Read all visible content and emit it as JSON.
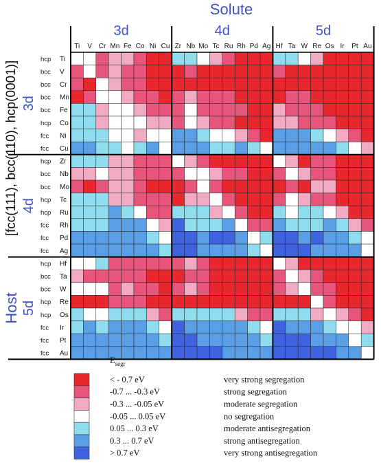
{
  "chart_data": {
    "type": "heatmap",
    "title": "Solute",
    "host_axis_label": "Host",
    "host_structure_label": "[fcc(111), bcc(110), hcp(0001)]",
    "solute_groups": [
      "3d",
      "4d",
      "5d"
    ],
    "host_groups": [
      "3d",
      "4d",
      "5d"
    ],
    "solutes": {
      "3d": [
        "Ti",
        "V",
        "Cr",
        "Mn",
        "Fe",
        "Co",
        "Ni",
        "Cu"
      ],
      "4d": [
        "Zr",
        "Nb",
        "Mo",
        "Tc",
        "Ru",
        "Rh",
        "Pd",
        "Ag"
      ],
      "5d": [
        "Hf",
        "Ta",
        "W",
        "Re",
        "Os",
        "Ir",
        "Pt",
        "Au"
      ]
    },
    "hosts": [
      {
        "structure": "hcp",
        "element": "Ti"
      },
      {
        "structure": "bcc",
        "element": "V"
      },
      {
        "structure": "bcc",
        "element": "Cr"
      },
      {
        "structure": "bcc",
        "element": "Mn"
      },
      {
        "structure": "bcc",
        "element": "Fe"
      },
      {
        "structure": "hcp",
        "element": "Co"
      },
      {
        "structure": "fcc",
        "element": "Ni"
      },
      {
        "structure": "fcc",
        "element": "Cu"
      },
      {
        "structure": "hcp",
        "element": "Zr"
      },
      {
        "structure": "bcc",
        "element": "Nb"
      },
      {
        "structure": "bcc",
        "element": "Mo"
      },
      {
        "structure": "hcp",
        "element": "Tc"
      },
      {
        "structure": "hcp",
        "element": "Ru"
      },
      {
        "structure": "fcc",
        "element": "Rh"
      },
      {
        "structure": "fcc",
        "element": "Pd"
      },
      {
        "structure": "fcc",
        "element": "Ag"
      },
      {
        "structure": "hcp",
        "element": "Hf"
      },
      {
        "structure": "bcc",
        "element": "Ta"
      },
      {
        "structure": "bcc",
        "element": "W"
      },
      {
        "structure": "hcp",
        "element": "Re"
      },
      {
        "structure": "hcp",
        "element": "Os"
      },
      {
        "structure": "fcc",
        "element": "Ir"
      },
      {
        "structure": "fcc",
        "element": "Pt"
      },
      {
        "structure": "fcc",
        "element": "Au"
      }
    ],
    "legend_title": "E",
    "legend_title_sub": "segr",
    "legend": [
      {
        "range": "< - 0.7 eV",
        "label": "very strong segregation",
        "color": "#e8272e"
      },
      {
        "range": "-0.7 ... -0.3 eV",
        "label": "strong segregation",
        "color": "#e8557a"
      },
      {
        "range": "-0.3 ... -0.05 eV",
        "label": "moderate segregation",
        "color": "#f1aac4"
      },
      {
        "range": "-0.05 ... 0.05 eV",
        "label": "no segregation",
        "color": "#ffffff"
      },
      {
        "range": "0.05   ...  0.3 eV",
        "label": "moderate antisegregation",
        "color": "#8fdcef"
      },
      {
        "range": "0.3     ...  0.7 eV",
        "label": "strong antisegregation",
        "color": "#5a9fe6"
      },
      {
        "range": ">  0.7 eV",
        "label": "very strong antisegregation",
        "color": "#3e62e0"
      }
    ],
    "colors": [
      "#e8272e",
      "#e8557a",
      "#f1aac4",
      "#ffffff",
      "#8fdcef",
      "#5a9fe6",
      "#3e62e0"
    ],
    "class_note": "values are legend class indices 0..6 (0 = very strong segregation, 6 = very strong antisegregation); rows = hosts, columns = solutes Ti..Au; null = diagonal (host = solute)",
    "values": [
      [
        null,
        3,
        1,
        2,
        2,
        1,
        0,
        0,
        4,
        4,
        3,
        2,
        1,
        0,
        0,
        0,
        4,
        4,
        3,
        2,
        0,
        0,
        0,
        0
      ],
      [
        1,
        null,
        1,
        2,
        1,
        1,
        0,
        0,
        0,
        1,
        0,
        0,
        0,
        0,
        0,
        0,
        1,
        0,
        0,
        0,
        0,
        0,
        0,
        0
      ],
      [
        1,
        0,
        null,
        2,
        1,
        1,
        0,
        0,
        0,
        0,
        0,
        0,
        0,
        0,
        0,
        0,
        0,
        0,
        0,
        0,
        0,
        0,
        0,
        0
      ],
      [
        0,
        1,
        3,
        null,
        2,
        1,
        1,
        0,
        1,
        2,
        1,
        1,
        1,
        0,
        0,
        0,
        0,
        1,
        1,
        0,
        0,
        0,
        0,
        0
      ],
      [
        4,
        4,
        2,
        3,
        null,
        2,
        1,
        1,
        1,
        3,
        1,
        1,
        1,
        1,
        0,
        0,
        2,
        1,
        1,
        1,
        0,
        0,
        0,
        0
      ],
      [
        4,
        4,
        2,
        3,
        3,
        null,
        2,
        2,
        1,
        3,
        2,
        1,
        1,
        0,
        0,
        0,
        2,
        2,
        1,
        1,
        1,
        0,
        0,
        0
      ],
      [
        4,
        4,
        4,
        3,
        3,
        2,
        null,
        3,
        5,
        5,
        4,
        3,
        3,
        2,
        1,
        0,
        5,
        5,
        5,
        4,
        3,
        2,
        1,
        0
      ],
      [
        5,
        5,
        4,
        4,
        3,
        4,
        5,
        null,
        5,
        5,
        5,
        4,
        4,
        5,
        4,
        3,
        5,
        5,
        5,
        5,
        5,
        4,
        3,
        2
      ],
      [
        4,
        4,
        4,
        2,
        2,
        1,
        1,
        1,
        null,
        2,
        1,
        0,
        0,
        0,
        0,
        0,
        3,
        2,
        0,
        1,
        1,
        0,
        0,
        0
      ],
      [
        2,
        2,
        3,
        2,
        2,
        1,
        1,
        1,
        1,
        null,
        3,
        2,
        1,
        1,
        0,
        0,
        1,
        3,
        2,
        1,
        1,
        0,
        0,
        0
      ],
      [
        1,
        0,
        1,
        2,
        2,
        1,
        0,
        0,
        0,
        1,
        null,
        1,
        0,
        0,
        0,
        0,
        0,
        1,
        0,
        2,
        2,
        0,
        0,
        0
      ],
      [
        4,
        4,
        4,
        2,
        2,
        1,
        1,
        1,
        0,
        2,
        2,
        null,
        1,
        0,
        0,
        0,
        1,
        3,
        2,
        1,
        1,
        0,
        0,
        0
      ],
      [
        4,
        4,
        4,
        5,
        4,
        3,
        1,
        1,
        4,
        4,
        4,
        2,
        null,
        1,
        0,
        0,
        4,
        3,
        4,
        4,
        3,
        2,
        0,
        0
      ],
      [
        4,
        4,
        4,
        5,
        5,
        5,
        3,
        2,
        6,
        4,
        4,
        4,
        5,
        null,
        1,
        1,
        5,
        4,
        4,
        4,
        5,
        4,
        2,
        1
      ],
      [
        5,
        5,
        5,
        5,
        5,
        5,
        4,
        3,
        6,
        6,
        5,
        6,
        6,
        5,
        null,
        4,
        6,
        6,
        5,
        6,
        5,
        5,
        4,
        3
      ],
      [
        5,
        5,
        5,
        5,
        5,
        5,
        5,
        4,
        6,
        6,
        5,
        5,
        5,
        5,
        4,
        null,
        6,
        6,
        6,
        5,
        5,
        5,
        5,
        3
      ],
      [
        3,
        3,
        4,
        1,
        1,
        1,
        1,
        1,
        1,
        2,
        1,
        0,
        0,
        0,
        0,
        0,
        null,
        2,
        0,
        0,
        0,
        0,
        0,
        0
      ],
      [
        2,
        1,
        1,
        1,
        1,
        1,
        0,
        0,
        0,
        1,
        1,
        0,
        0,
        0,
        0,
        0,
        1,
        null,
        2,
        1,
        0,
        0,
        0,
        0
      ],
      [
        3,
        3,
        3,
        1,
        2,
        1,
        1,
        0,
        1,
        2,
        1,
        0,
        0,
        0,
        0,
        0,
        1,
        2,
        null,
        1,
        1,
        0,
        0,
        0
      ],
      [
        0,
        0,
        0,
        1,
        1,
        1,
        0,
        0,
        0,
        0,
        0,
        0,
        0,
        0,
        0,
        0,
        0,
        0,
        0,
        null,
        1,
        0,
        0,
        0
      ],
      [
        4,
        3,
        3,
        4,
        4,
        4,
        2,
        1,
        4,
        4,
        4,
        4,
        4,
        2,
        1,
        1,
        4,
        4,
        4,
        2,
        null,
        2,
        1,
        0
      ],
      [
        4,
        5,
        4,
        5,
        5,
        5,
        4,
        3,
        6,
        5,
        5,
        5,
        5,
        5,
        4,
        3,
        6,
        5,
        5,
        5,
        4,
        null,
        3,
        2
      ],
      [
        5,
        5,
        5,
        5,
        5,
        5,
        5,
        4,
        6,
        6,
        5,
        5,
        5,
        5,
        5,
        4,
        6,
        6,
        6,
        5,
        5,
        5,
        null,
        4
      ],
      [
        5,
        5,
        5,
        5,
        5,
        5,
        5,
        5,
        6,
        6,
        6,
        6,
        5,
        5,
        5,
        5,
        6,
        6,
        6,
        6,
        6,
        5,
        5,
        null
      ]
    ]
  }
}
